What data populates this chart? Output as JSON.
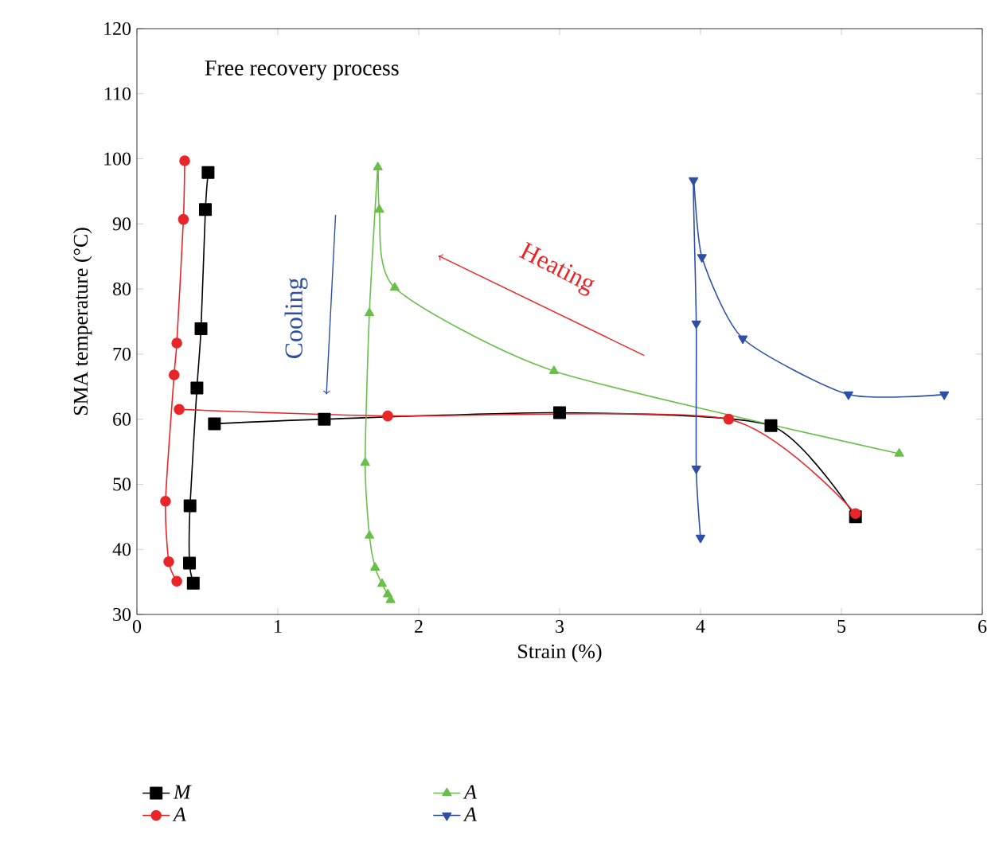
{
  "chart_data": {
    "type": "line",
    "xlabel": "Strain (%)",
    "ylabel": "SMA temperature (°C)",
    "annotations": [
      "Free recovery process",
      "Cooling",
      "Heating"
    ],
    "xlim": [
      0,
      6
    ],
    "ylim": [
      30,
      120
    ],
    "xticks": [
      0,
      1,
      2,
      3,
      4,
      5,
      6
    ],
    "yticks": [
      30,
      40,
      50,
      60,
      70,
      80,
      90,
      100,
      110,
      120
    ],
    "legend": "bottom",
    "series": [
      {
        "name": "M",
        "color": "#000000",
        "marker": "square",
        "x": [
          0.4,
          0.373,
          0.377,
          0.426,
          0.455,
          0.486,
          0.505,
          null,
          0.55,
          1.33,
          3.0,
          4.5,
          5.1
        ],
        "values": [
          34.8,
          37.9,
          46.7,
          64.8,
          73.9,
          92.2,
          97.9,
          null,
          59.3,
          60,
          61,
          59,
          45
        ]
      },
      {
        "name": "A",
        "color": "#e8262a",
        "marker": "circle",
        "x": [
          0.339,
          0.33,
          0.283,
          0.264,
          0.203,
          0.226,
          0.283,
          null,
          0.3,
          1.78,
          4.2,
          5.1
        ],
        "values": [
          99.7,
          90.7,
          71.7,
          66.8,
          47.4,
          38.1,
          35.1,
          null,
          61.5,
          60.5,
          60,
          45.5
        ]
      },
      {
        "name": "A",
        "color": "#6abf4b",
        "marker": "triangle",
        "x": [
          1.8,
          1.78,
          1.74,
          1.69,
          1.65,
          1.62,
          1.65,
          1.71,
          1.72,
          1.83,
          2.96,
          5.41
        ],
        "values": [
          32.2,
          33.1,
          34.7,
          37.2,
          42.1,
          53.3,
          76.3,
          98.7,
          92.2,
          80.2,
          67.4,
          54.7
        ]
      },
      {
        "name": "A",
        "color": "#2e4fa3",
        "marker": "triangle down",
        "x": [
          5.73,
          5.05,
          4.3,
          4.01,
          3.95,
          3.97,
          3.97,
          4.0
        ],
        "values": [
          63.8,
          63.8,
          72.4,
          84.9,
          96.7,
          74.7,
          52.4,
          41.8
        ]
      }
    ]
  }
}
